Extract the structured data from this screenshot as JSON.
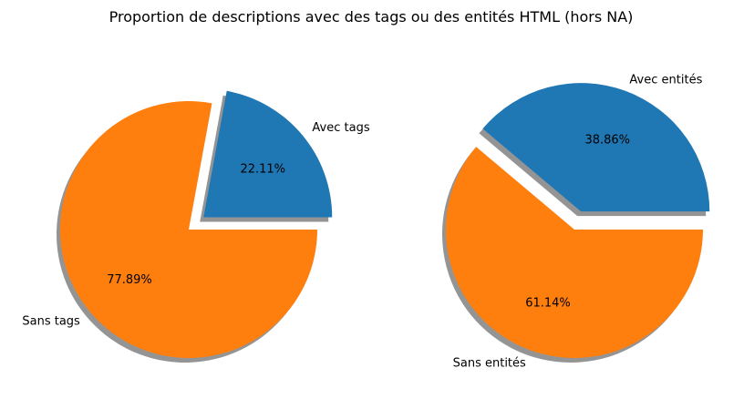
{
  "figure": {
    "title": "Proportion de descriptions avec des tags ou des entités HTML (hors NA)"
  },
  "chart_data": [
    {
      "type": "pie",
      "title": "",
      "labels": [
        "Avec tags",
        "Sans tags"
      ],
      "values": [
        22.11,
        77.89
      ],
      "value_labels": [
        "22.11%",
        "77.89%"
      ],
      "colors": [
        "#1f77b4",
        "#ff7f0e"
      ],
      "exploded": [
        true,
        false
      ],
      "shadow": true,
      "start_angle_deg": 0
    },
    {
      "type": "pie",
      "title": "",
      "labels": [
        "Avec entités",
        "Sans entités"
      ],
      "values": [
        38.86,
        61.14
      ],
      "value_labels": [
        "38.86%",
        "61.14%"
      ],
      "colors": [
        "#1f77b4",
        "#ff7f0e"
      ],
      "exploded": [
        true,
        false
      ],
      "shadow": true,
      "start_angle_deg": 0
    }
  ]
}
